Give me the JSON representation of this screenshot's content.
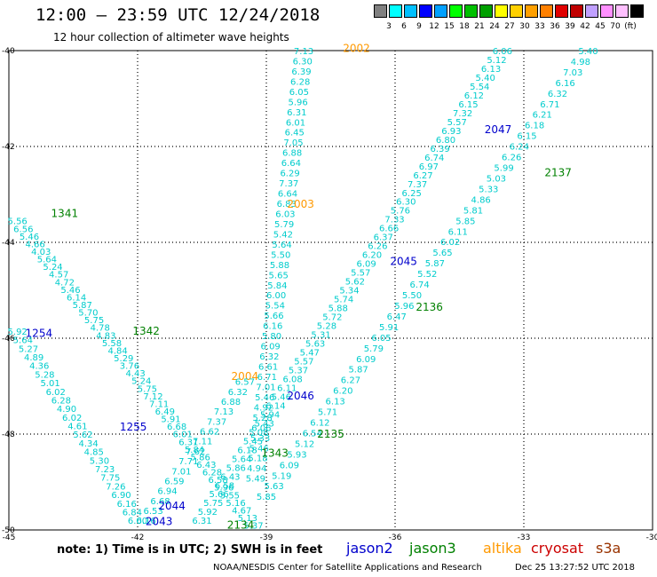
{
  "title": "12:00 – 23:59 UTC 12/24/2018",
  "subtitle": "12 hour collection of altimeter wave heights",
  "colorbar": {
    "colors": [
      "#808080",
      "#00ffff",
      "#00c0ff",
      "#0000ff",
      "#00a0ff",
      "#00ff00",
      "#00c000",
      "#00a000",
      "#ffff00",
      "#ffd000",
      "#ffa000",
      "#ff8000",
      "#e00000",
      "#c00000",
      "#c0a0ff",
      "#ff90ff",
      "#ffc0ff",
      "#000000"
    ],
    "labels": [
      "3",
      "6",
      "9",
      "12",
      "15",
      "18",
      "21",
      "24",
      "27",
      "30",
      "33",
      "36",
      "39",
      "42",
      "45",
      "70",
      "(ft)"
    ]
  },
  "axes": {
    "lon_min": -45,
    "lon_max": -30,
    "lat_min": -50,
    "lat_max": -40,
    "x_ticks": [
      {
        "v": -42,
        "t": "-42"
      },
      {
        "v": -39,
        "t": "-39"
      },
      {
        "v": -36,
        "t": "-36"
      },
      {
        "v": -33,
        "t": "-33"
      }
    ],
    "y_ticks": [
      {
        "v": -42,
        "t": "-42"
      },
      {
        "v": -44,
        "t": "-44"
      },
      {
        "v": -46,
        "t": "-46"
      },
      {
        "v": -48,
        "t": "-48"
      }
    ],
    "corner_labels": {
      "lon_left": "-45",
      "lon_right": "-30",
      "lat_top": "-40",
      "lat_bottom": "-50"
    }
  },
  "sat_colors": {
    "jason2": "#0000cc",
    "jason3": "#008000",
    "altika": "#ff9900",
    "cryosat": "#cc0000",
    "s3a": "#993300",
    "value": "#00cccc"
  },
  "tracks": [
    {
      "name": "2002",
      "sat": "altika",
      "p0": [
        -39.25,
        -48.92
      ],
      "p1": [
        -38.13,
        -40.0
      ],
      "values": [
        "5.49",
        "4.94",
        "5.18",
        "5.46",
        "5.33",
        "6.06",
        "5.28",
        "4.92",
        "5.46",
        "7.01",
        "6.71",
        "6.61",
        "6.32",
        "6.09",
        "5.80",
        "6.16",
        "5.66",
        "5.54",
        "6.00",
        "5.84",
        "5.65",
        "5.88",
        "5.50",
        "5.64",
        "5.42",
        "5.79",
        "6.03",
        "6.83",
        "6.64",
        "7.37",
        "6.29",
        "6.64",
        "6.88",
        "7.05",
        "6.45",
        "6.01",
        "6.31",
        "5.96",
        "6.05",
        "6.28",
        "6.39",
        "6.30",
        "7.13"
      ],
      "labels": [
        {
          "text": "2002",
          "lon": -36.9,
          "lat": -39.95
        },
        {
          "text": "2003",
          "lon": -38.2,
          "lat": -43.2
        },
        {
          "text": "2004",
          "lon": -39.5,
          "lat": -46.8
        }
      ]
    },
    {
      "name": "1341",
      "sat": "jason3",
      "p0": [
        -44.8,
        -43.55
      ],
      "p1": [
        -39.3,
        -49.9
      ],
      "values": [
        "5.56",
        "6.56",
        "5.46",
        "4.66",
        "4.03",
        "5.64",
        "5.24",
        "4.57",
        "4.72",
        "5.46",
        "6.14",
        "5.87",
        "5.70",
        "5.75",
        "4.78",
        "4.83",
        "5.58",
        "4.84",
        "5.29",
        "3.76",
        "4.43",
        "5.24",
        "5.75",
        "7.12",
        "7.11",
        "6.49",
        "5.91",
        "6.68",
        "6.01",
        "6.31",
        "5.84",
        "5.86",
        "6.43",
        "6.28",
        "6.58",
        "5.96",
        "5.55",
        "5.16",
        "4.67",
        "5.13",
        "5.37"
      ],
      "labels": [
        {
          "text": "1341",
          "lon": -43.7,
          "lat": -43.4
        },
        {
          "text": "1342",
          "lon": -41.8,
          "lat": -45.85
        },
        {
          "text": "1343",
          "lon": -38.8,
          "lat": -48.4
        }
      ]
    },
    {
      "name": "1254",
      "sat": "jason2",
      "p0": [
        -44.8,
        -45.85
      ],
      "p1": [
        -42.0,
        -49.8
      ],
      "values": [
        "5.92",
        "5.64",
        "5.27",
        "4.89",
        "4.36",
        "5.28",
        "5.01",
        "6.02",
        "6.28",
        "4.90",
        "6.02",
        "4.61",
        "5.62",
        "4.34",
        "4.85",
        "5.30",
        "7.23",
        "7.75",
        "7.26",
        "6.90",
        "6.16",
        "6.84",
        "6.00"
      ],
      "labels": [
        {
          "text": "1254",
          "lon": -44.3,
          "lat": -45.9
        },
        {
          "text": "1255",
          "lon": -42.1,
          "lat": -47.85
        }
      ]
    },
    {
      "name": "2043",
      "sat": "jason2",
      "p0": [
        -41.8,
        -49.8
      ],
      "p1": [
        -39.5,
        -46.9
      ],
      "values": [
        "6.16",
        "6.53",
        "6.68",
        "6.94",
        "6.59",
        "7.01",
        "7.71",
        "7.62",
        "7.11",
        "6.62",
        "7.37",
        "7.13",
        "6.88",
        "6.32",
        "6.57"
      ],
      "labels": [
        {
          "text": "2043",
          "lon": -41.5,
          "lat": -49.82
        },
        {
          "text": "2044",
          "lon": -41.2,
          "lat": -49.5
        }
      ]
    },
    {
      "name": "2045",
      "sat": "jason2",
      "p0": [
        -40.5,
        -49.8
      ],
      "p1": [
        -33.5,
        -40.0
      ],
      "values": [
        "6.31",
        "5.92",
        "5.75",
        "5.66",
        "6.58",
        "6.43",
        "5.86",
        "5.64",
        "6.18",
        "5.45",
        "5.08",
        "5.43",
        "5.94",
        "6.14",
        "5.46",
        "6.11",
        "6.08",
        "5.37",
        "5.57",
        "5.47",
        "5.63",
        "5.31",
        "5.28",
        "5.72",
        "5.88",
        "5.74",
        "5.34",
        "5.62",
        "5.57",
        "6.09",
        "6.20",
        "6.26",
        "6.37",
        "6.66",
        "7.33",
        "5.76",
        "6.30",
        "6.25",
        "7.37",
        "6.27",
        "6.97",
        "6.74",
        "6.39",
        "6.80",
        "6.93",
        "5.57",
        "7.32",
        "6.15",
        "6.12",
        "5.54",
        "5.40",
        "6.13",
        "5.12",
        "6.06"
      ],
      "labels": [
        {
          "text": "2045",
          "lon": -35.8,
          "lat": -44.4
        },
        {
          "text": "2046",
          "lon": -38.2,
          "lat": -47.2
        },
        {
          "text": "2047",
          "lon": -33.6,
          "lat": -41.65
        }
      ]
    },
    {
      "name": "2134",
      "sat": "jason3",
      "p0": [
        -39.0,
        -49.3
      ],
      "p1": [
        -31.5,
        -40.0
      ],
      "values": [
        "5.85",
        "5.63",
        "5.19",
        "6.09",
        "5.93",
        "5.12",
        "6.54",
        "6.12",
        "5.71",
        "6.13",
        "6.20",
        "6.27",
        "5.87",
        "6.09",
        "5.79",
        "6.05",
        "5.91",
        "6.47",
        "5.96",
        "5.50",
        "6.74",
        "5.52",
        "5.87",
        "5.65",
        "6.02",
        "6.11",
        "5.85",
        "5.81",
        "4.86",
        "5.33",
        "5.03",
        "5.99",
        "6.26",
        "6.24",
        "6.15",
        "6.18",
        "6.21",
        "6.71",
        "6.32",
        "6.16",
        "7.03",
        "4.98",
        "5.40"
      ],
      "labels": [
        {
          "text": "2134",
          "lon": -39.6,
          "lat": -49.9
        },
        {
          "text": "2135",
          "lon": -37.5,
          "lat": -48.0
        },
        {
          "text": "2136",
          "lon": -35.2,
          "lat": -45.35
        },
        {
          "text": "2137",
          "lon": -32.2,
          "lat": -42.55
        }
      ]
    }
  ],
  "note": "note: 1) Time is in UTC; 2) SWH is in feet",
  "legend": [
    {
      "label": "jason2",
      "sat": "jason2"
    },
    {
      "label": "jason3",
      "sat": "jason3"
    },
    {
      "label": "altika",
      "sat": "altika"
    },
    {
      "label": "cryosat",
      "sat": "cryosat"
    },
    {
      "label": "s3a",
      "sat": "s3a"
    }
  ],
  "credit": "NOAA/NESDIS Center for Satellite Applications and Research",
  "timestamp": "Dec 25 13:27:52 UTC 2018"
}
